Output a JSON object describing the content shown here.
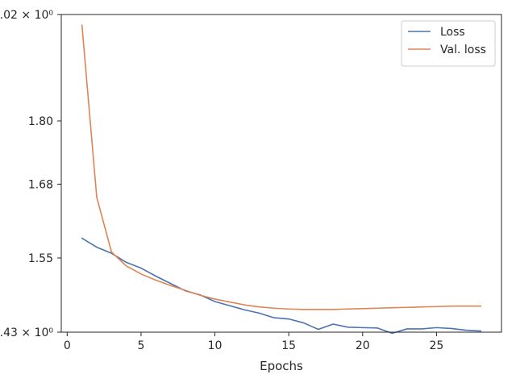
{
  "chart_data": {
    "type": "line",
    "title": "",
    "xlabel": "Epochs",
    "ylabel": "",
    "yscale": "log",
    "xlim": [
      -0.4,
      29.4
    ],
    "ylim": [
      1.4295,
      2.0216
    ],
    "xticks": [
      0,
      5,
      10,
      15,
      20,
      25
    ],
    "yticks": [
      {
        "value": 2.0216,
        "label": "2.02 × 10⁰"
      },
      {
        "value": 1.8,
        "label": "1.80"
      },
      {
        "value": 1.68,
        "label": "1.68"
      },
      {
        "value": 1.55,
        "label": "1.55"
      },
      {
        "value": 1.4295,
        "label": "1.43 × 10⁰"
      }
    ],
    "grid": false,
    "legend_position": "top-right",
    "x": [
      1,
      2,
      3,
      4,
      5,
      6,
      7,
      8,
      9,
      10,
      11,
      12,
      13,
      14,
      15,
      16,
      17,
      18,
      19,
      20,
      21,
      22,
      23,
      24,
      25,
      26,
      27,
      28
    ],
    "series": [
      {
        "name": "Loss",
        "color": "#4c72b0",
        "values": [
          1.5838,
          1.5684,
          1.558,
          1.5426,
          1.533,
          1.5196,
          1.5075,
          1.4955,
          1.4888,
          1.4781,
          1.4714,
          1.4648,
          1.4595,
          1.4522,
          1.4502,
          1.4441,
          1.4339,
          1.4421,
          1.4373,
          1.4366,
          1.436,
          1.4278,
          1.4346,
          1.4346,
          1.4366,
          1.4353,
          1.4326,
          1.4313
        ]
      },
      {
        "name": "Val. loss",
        "color": "#dd8452",
        "values": [
          1.9985,
          1.6563,
          1.5601,
          1.5367,
          1.5232,
          1.5129,
          1.5042,
          1.4962,
          1.4882,
          1.4821,
          1.4774,
          1.4727,
          1.4694,
          1.4674,
          1.4661,
          1.4654,
          1.4654,
          1.4654,
          1.4661,
          1.4667,
          1.4674,
          1.4681,
          1.4687,
          1.4694,
          1.47,
          1.4707,
          1.4707,
          1.4707
        ]
      }
    ]
  }
}
